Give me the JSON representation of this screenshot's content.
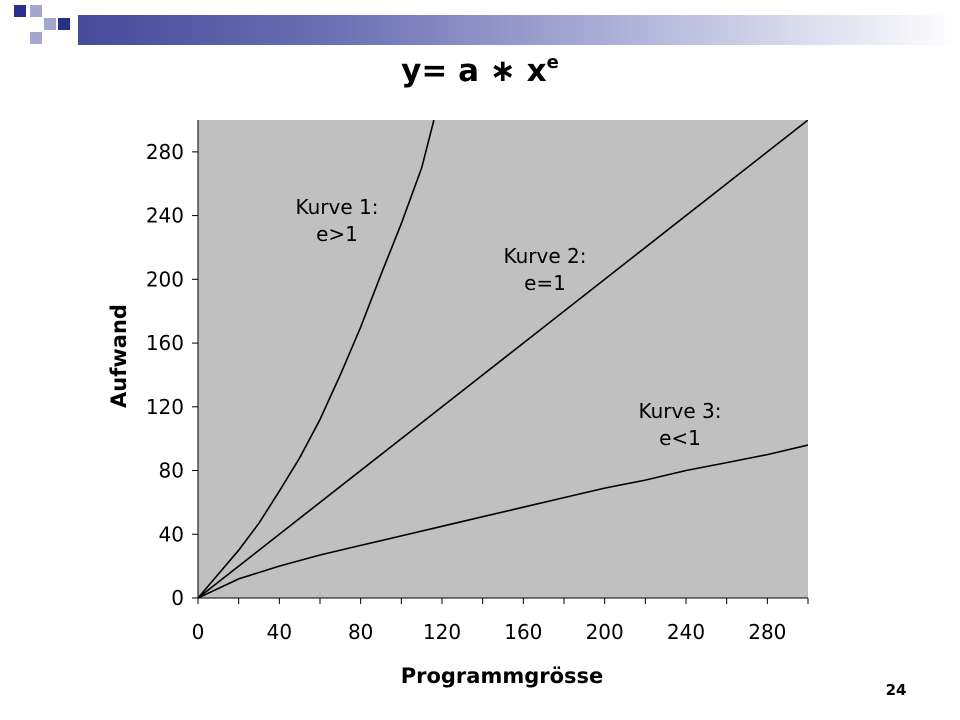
{
  "slide": {
    "title_base": "y= a ∗ x",
    "title_exponent": "e",
    "page_number": "24"
  },
  "colors": {
    "plot_background": "#c0c0c0",
    "curve": "#000000",
    "title_bar_dark": "#454a9a",
    "accent_square_dark": "#2a2f8c",
    "accent_square_light": "#a4a8d0"
  },
  "chart_data": {
    "type": "line",
    "title": "y= a ∗ x^e",
    "xlabel": "Programmgrösse",
    "ylabel": "Aufwand",
    "xlim": [
      0,
      300
    ],
    "ylim": [
      0,
      300
    ],
    "grid": false,
    "x_ticks": [
      0,
      40,
      80,
      120,
      160,
      200,
      240,
      280
    ],
    "y_ticks": [
      0,
      40,
      80,
      120,
      160,
      200,
      240,
      280
    ],
    "series": [
      {
        "name": "Kurve 1: e>1",
        "label_lines": [
          "Kurve 1:",
          "e>1"
        ],
        "x": [
          0,
          10,
          20,
          30,
          40,
          50,
          60,
          70,
          80,
          90,
          100,
          110,
          116
        ],
        "y": [
          0,
          15,
          30,
          47,
          67,
          88,
          112,
          140,
          170,
          203,
          235,
          270,
          300
        ]
      },
      {
        "name": "Kurve 2: e=1",
        "label_lines": [
          "Kurve 2:",
          "e=1"
        ],
        "x": [
          0,
          300
        ],
        "y": [
          0,
          300
        ]
      },
      {
        "name": "Kurve 3: e<1",
        "label_lines": [
          "Kurve 3:",
          "e<1"
        ],
        "x": [
          0,
          20,
          40,
          60,
          80,
          100,
          120,
          140,
          160,
          180,
          200,
          220,
          240,
          260,
          280,
          300
        ],
        "y": [
          0,
          12,
          20,
          27,
          33,
          39,
          45,
          51,
          57,
          63,
          69,
          74,
          80,
          85,
          90,
          96
        ]
      }
    ]
  }
}
